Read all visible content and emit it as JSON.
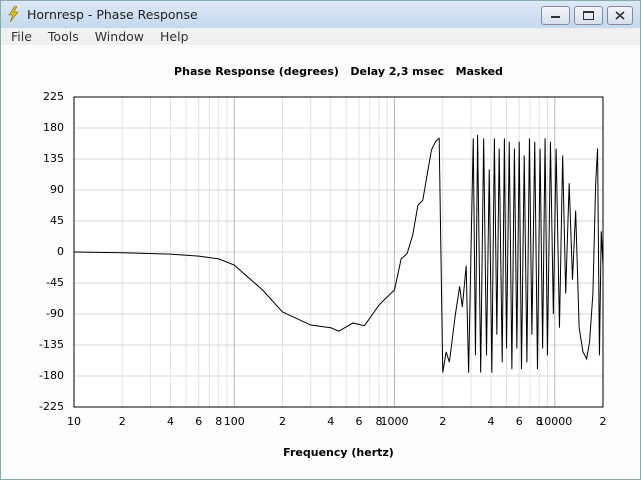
{
  "window": {
    "title": "Hornresp - Phase Response"
  },
  "menu": [
    "File",
    "Tools",
    "Window",
    "Help"
  ],
  "chart_data": {
    "type": "line",
    "title": "Phase Response (degrees)   Delay 2,3 msec   Masked",
    "x_label": "Frequency (hertz)",
    "xscale": "log",
    "color": "#000000",
    "grid": true,
    "xlim": [
      10,
      20000
    ],
    "ylim": [
      -225,
      225
    ],
    "xticks": [
      10,
      {
        "value": 20,
        "label": "2"
      },
      {
        "value": 40,
        "label": "4"
      },
      {
        "value": 60,
        "label": "6"
      },
      {
        "value": 80,
        "label": "8"
      },
      100,
      {
        "value": 200,
        "label": "2"
      },
      {
        "value": 400,
        "label": "4"
      },
      {
        "value": 600,
        "label": "6"
      },
      {
        "value": 800,
        "label": "8"
      },
      1000,
      {
        "value": 2000,
        "label": "2"
      },
      {
        "value": 4000,
        "label": "4"
      },
      {
        "value": 6000,
        "label": "6"
      },
      {
        "value": 8000,
        "label": "8"
      },
      10000,
      {
        "value": 20000,
        "label": "2"
      }
    ],
    "minor_xgrid": [
      30,
      50,
      70,
      90,
      300,
      500,
      700,
      900,
      3000,
      5000,
      7000,
      9000
    ],
    "yticks": [
      225,
      180,
      135,
      90,
      45,
      0,
      -45,
      -90,
      -135,
      -180,
      -225
    ],
    "x": [
      10,
      20,
      40,
      60,
      80,
      100,
      150,
      200,
      300,
      400,
      450,
      550,
      650,
      800,
      1000,
      1100,
      1200,
      1300,
      1400,
      1500,
      1700,
      1800,
      1900,
      2000,
      2100,
      2200,
      2400,
      2550,
      2650,
      2800,
      2900,
      3000,
      3100,
      3200,
      3300,
      3450,
      3600,
      3750,
      3900,
      4050,
      4200,
      4350,
      4500,
      4700,
      4850,
      5000,
      5200,
      5400,
      5600,
      5800,
      6000,
      6200,
      6450,
      6700,
      6950,
      7200,
      7500,
      7800,
      8100,
      8400,
      8700,
      9000,
      9400,
      9800,
      10200,
      10700,
      11200,
      11700,
      12300,
      12900,
      13500,
      14200,
      15000,
      15800,
      16500,
      17300,
      18000,
      18500,
      19000,
      19500,
      20000
    ],
    "values": [
      0,
      -1,
      -3,
      -6,
      -10,
      -19,
      -55,
      -87,
      -106,
      -110,
      -115,
      -103,
      -107,
      -77,
      -55,
      -10,
      -2,
      25,
      68,
      75,
      148,
      160,
      165,
      -175,
      -145,
      -160,
      -90,
      -50,
      -80,
      -20,
      -175,
      0,
      165,
      -150,
      170,
      -175,
      165,
      -150,
      120,
      -175,
      165,
      -120,
      150,
      -160,
      165,
      -140,
      160,
      -170,
      150,
      -140,
      160,
      -170,
      140,
      -160,
      165,
      -120,
      160,
      -170,
      150,
      -140,
      165,
      -150,
      160,
      -90,
      150,
      -110,
      140,
      -60,
      100,
      -40,
      60,
      -110,
      -145,
      -155,
      -130,
      -60,
      100,
      150,
      -150,
      30,
      -20
    ]
  }
}
